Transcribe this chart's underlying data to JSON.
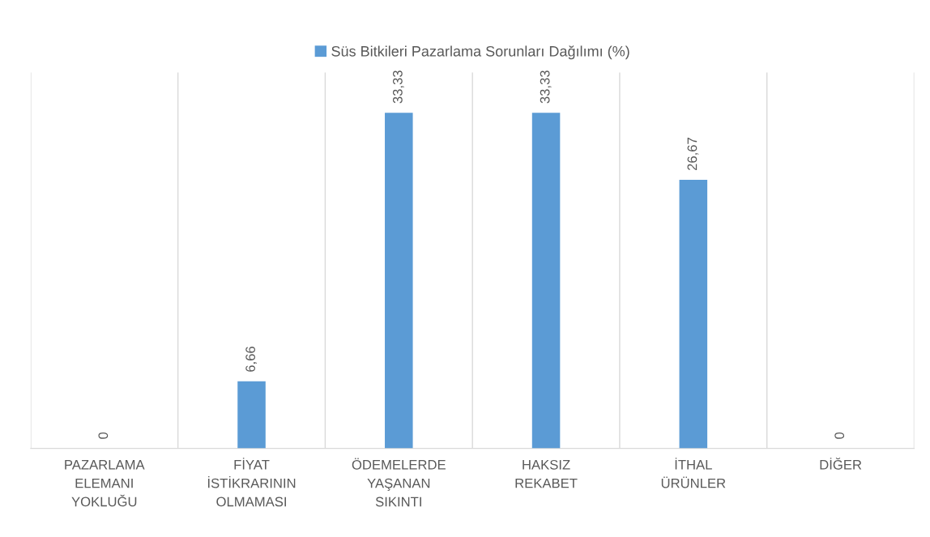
{
  "chart_data": {
    "type": "bar",
    "categories": [
      "PAZARLAMA\nELEMANI\nYOKLUĞU",
      "FİYAT\nİSTİKRARININ\nOLMAMASI",
      "ÖDEMELERDE\nYAŞANAN\nSIKINTI",
      "HAKSIZ\nREKABET",
      "İTHAL\nÜRÜNLER",
      "DİĞER"
    ],
    "series": [
      {
        "name": "Süs Bitkileri Pazarlama Sorunları Dağılımı (%)",
        "color": "#5b9bd5",
        "values": [
          0,
          6.66,
          33.33,
          33.33,
          26.67,
          0
        ],
        "value_labels": [
          "0",
          "6,66",
          "33,33",
          "33,33",
          "26,67",
          "0"
        ]
      }
    ],
    "grid": "x",
    "legend": "top"
  }
}
